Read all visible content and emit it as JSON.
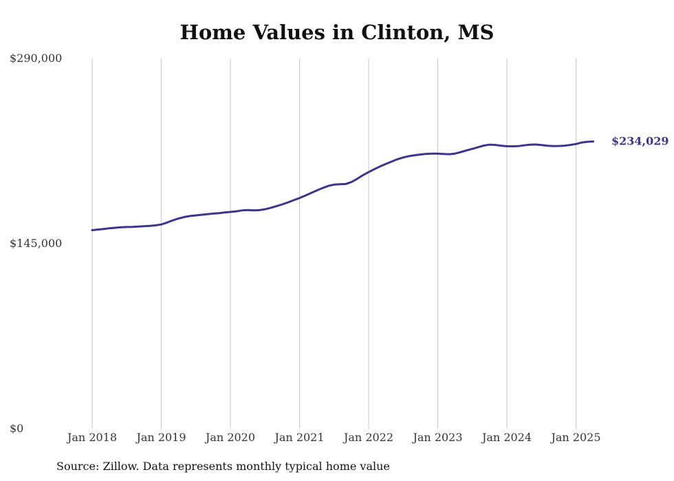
{
  "chart_data": {
    "type": "line",
    "title": "Home Values in Clinton, MS",
    "xlabel": "",
    "ylabel": "",
    "ylim": [
      0,
      290000
    ],
    "xlim": [
      "2018-01",
      "2025-05"
    ],
    "grid": {
      "x": true,
      "y": false
    },
    "legend": "none",
    "y_ticks": [
      {
        "value": 0,
        "label": "$0"
      },
      {
        "value": 145000,
        "label": "$145,000"
      },
      {
        "value": 290000,
        "label": "$290,000"
      }
    ],
    "x_ticks": [
      {
        "value": "2018-01",
        "label": "Jan 2018"
      },
      {
        "value": "2019-01",
        "label": "Jan 2019"
      },
      {
        "value": "2020-01",
        "label": "Jan 2020"
      },
      {
        "value": "2021-01",
        "label": "Jan 2021"
      },
      {
        "value": "2022-01",
        "label": "Jan 2022"
      },
      {
        "value": "2023-01",
        "label": "Jan 2023"
      },
      {
        "value": "2024-01",
        "label": "Jan 2024"
      },
      {
        "value": "2025-01",
        "label": "Jan 2025"
      }
    ],
    "series": [
      {
        "color": "#3d348b",
        "end_label": "$234,029",
        "points": [
          [
            "2018-01",
            155500
          ],
          [
            "2018-02",
            156000
          ],
          [
            "2018-03",
            156500
          ],
          [
            "2018-04",
            157000
          ],
          [
            "2018-05",
            157400
          ],
          [
            "2018-06",
            157800
          ],
          [
            "2018-07",
            158000
          ],
          [
            "2018-08",
            158100
          ],
          [
            "2018-09",
            158300
          ],
          [
            "2018-10",
            158600
          ],
          [
            "2018-11",
            158900
          ],
          [
            "2018-12",
            159300
          ],
          [
            "2019-01",
            160000
          ],
          [
            "2019-02",
            161500
          ],
          [
            "2019-03",
            163200
          ],
          [
            "2019-04",
            164700
          ],
          [
            "2019-05",
            165800
          ],
          [
            "2019-06",
            166600
          ],
          [
            "2019-07",
            167100
          ],
          [
            "2019-08",
            167600
          ],
          [
            "2019-09",
            168000
          ],
          [
            "2019-10",
            168500
          ],
          [
            "2019-11",
            168900
          ],
          [
            "2019-12",
            169400
          ],
          [
            "2020-01",
            169800
          ],
          [
            "2020-02",
            170300
          ],
          [
            "2020-03",
            171000
          ],
          [
            "2020-04",
            171300
          ],
          [
            "2020-05",
            171000
          ],
          [
            "2020-06",
            171200
          ],
          [
            "2020-07",
            171900
          ],
          [
            "2020-08",
            173000
          ],
          [
            "2020-09",
            174300
          ],
          [
            "2020-10",
            175700
          ],
          [
            "2020-11",
            177300
          ],
          [
            "2020-12",
            179000
          ],
          [
            "2021-01",
            180700
          ],
          [
            "2021-02",
            182600
          ],
          [
            "2021-03",
            184600
          ],
          [
            "2021-04",
            186600
          ],
          [
            "2021-05",
            188500
          ],
          [
            "2021-06",
            190200
          ],
          [
            "2021-07",
            191200
          ],
          [
            "2021-08",
            191500
          ],
          [
            "2021-09",
            191700
          ],
          [
            "2021-10",
            193200
          ],
          [
            "2021-11",
            195700
          ],
          [
            "2021-12",
            198500
          ],
          [
            "2022-01",
            201000
          ],
          [
            "2022-02",
            203300
          ],
          [
            "2022-03",
            205500
          ],
          [
            "2022-04",
            207400
          ],
          [
            "2022-05",
            209300
          ],
          [
            "2022-06",
            211100
          ],
          [
            "2022-07",
            212500
          ],
          [
            "2022-08",
            213500
          ],
          [
            "2022-09",
            214200
          ],
          [
            "2022-10",
            214800
          ],
          [
            "2022-11",
            215300
          ],
          [
            "2022-12",
            215500
          ],
          [
            "2023-01",
            215500
          ],
          [
            "2023-02",
            215200
          ],
          [
            "2023-03",
            215000
          ],
          [
            "2023-04",
            215500
          ],
          [
            "2023-05",
            216700
          ],
          [
            "2023-06",
            218000
          ],
          [
            "2023-07",
            219200
          ],
          [
            "2023-08",
            220500
          ],
          [
            "2023-09",
            221800
          ],
          [
            "2023-10",
            222500
          ],
          [
            "2023-11",
            222300
          ],
          [
            "2023-12",
            221700
          ],
          [
            "2024-01",
            221300
          ],
          [
            "2024-02",
            221200
          ],
          [
            "2024-03",
            221400
          ],
          [
            "2024-04",
            222000
          ],
          [
            "2024-05",
            222500
          ],
          [
            "2024-06",
            222600
          ],
          [
            "2024-07",
            222200
          ],
          [
            "2024-08",
            221700
          ],
          [
            "2024-09",
            221400
          ],
          [
            "2024-10",
            221500
          ],
          [
            "2024-11",
            221700
          ],
          [
            "2024-12",
            222300
          ],
          [
            "2025-01",
            223000
          ],
          [
            "2025-02",
            224200
          ],
          [
            "2025-03",
            224800
          ],
          [
            "2025-04",
            225000
          ],
          [
            "2025-05",
            234029
          ]
        ]
      }
    ],
    "source_note": "Source: Zillow. Data represents monthly typical home value"
  }
}
